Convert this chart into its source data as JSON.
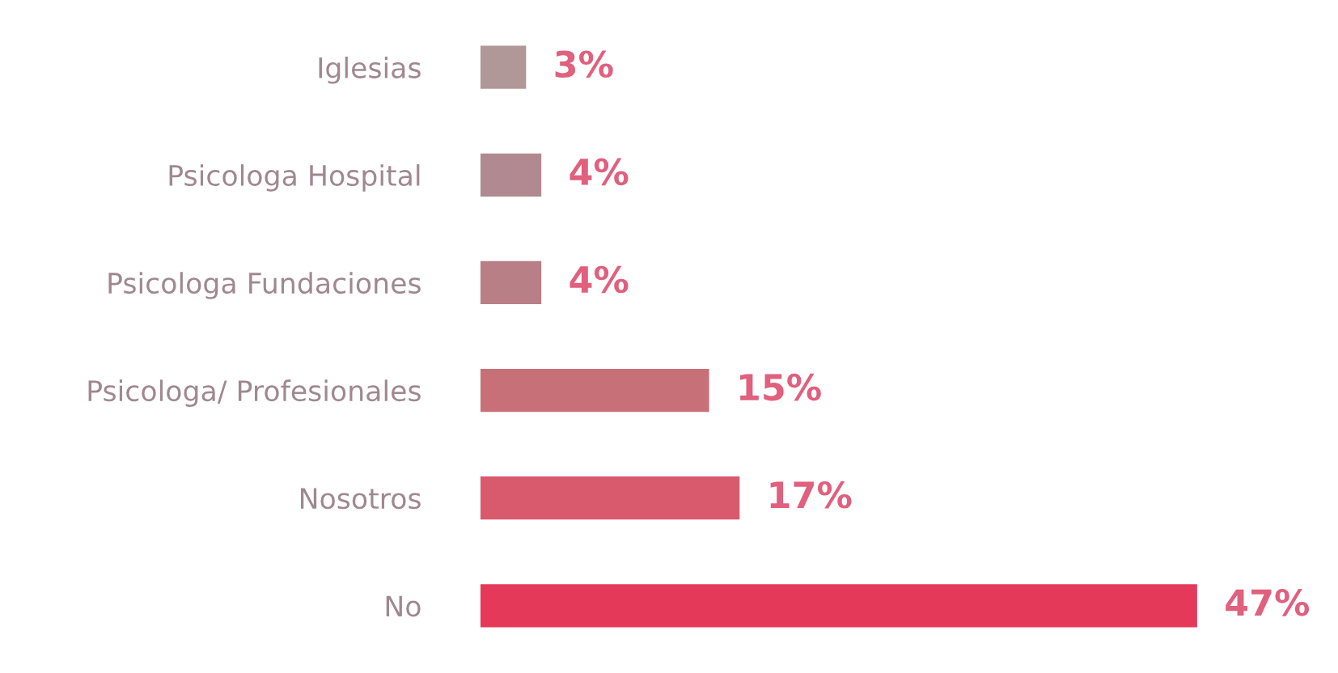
{
  "chart_data": {
    "type": "bar",
    "orientation": "horizontal",
    "categories": [
      "Iglesias",
      "Psicologa Hospital",
      "Psicologa Fundaciones",
      "Psicologa/ Profesionales",
      "Nosotros",
      "No"
    ],
    "values": [
      3,
      4,
      4,
      15,
      17,
      47
    ],
    "colors": [
      "#b09898",
      "#b08a90",
      "#b87f86",
      "#c87078",
      "#d85a6c",
      "#e5395a"
    ],
    "value_labels": [
      "3%",
      "4%",
      "4%",
      "15%",
      "17%",
      "47%"
    ],
    "tick_labels": "y"
  }
}
